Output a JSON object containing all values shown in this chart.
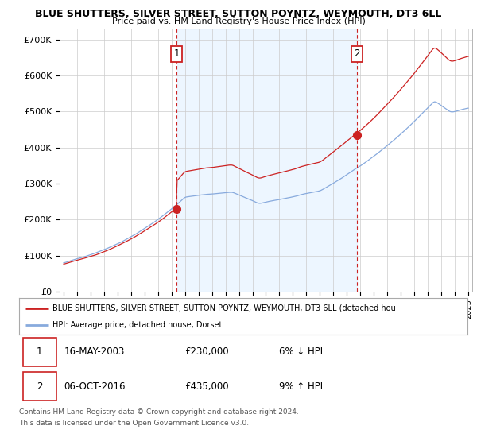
{
  "title": "BLUE SHUTTERS, SILVER STREET, SUTTON POYNTZ, WEYMOUTH, DT3 6LL",
  "subtitle": "Price paid vs. HM Land Registry's House Price Index (HPI)",
  "legend_line1": "BLUE SHUTTERS, SILVER STREET, SUTTON POYNTZ, WEYMOUTH, DT3 6LL (detached hou",
  "legend_line2": "HPI: Average price, detached house, Dorset",
  "table_row1": [
    "1",
    "16-MAY-2003",
    "£230,000",
    "6% ↓ HPI"
  ],
  "table_row2": [
    "2",
    "06-OCT-2016",
    "£435,000",
    "9% ↑ HPI"
  ],
  "footnote1": "Contains HM Land Registry data © Crown copyright and database right 2024.",
  "footnote2": "This data is licensed under the Open Government Licence v3.0.",
  "sale1_year": 2003.37,
  "sale1_price": 230000,
  "sale2_year": 2016.76,
  "sale2_price": 435000,
  "hpi_color": "#88aadd",
  "price_color": "#cc2222",
  "fill_color": "#ddeeff",
  "marker_color": "#cc2222",
  "vline_color": "#cc2222",
  "background_color": "#ffffff",
  "grid_color": "#cccccc",
  "ylim": [
    0,
    730000
  ],
  "xlim_start": 1994.7,
  "xlim_end": 2025.3
}
